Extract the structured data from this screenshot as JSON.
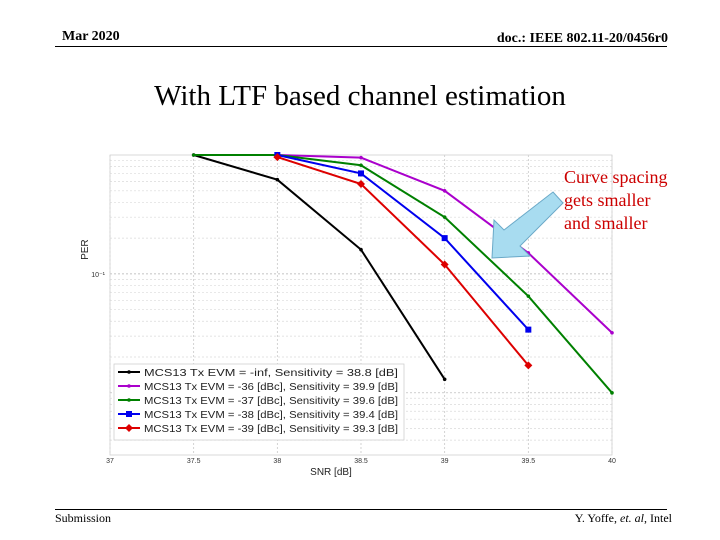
{
  "header": {
    "left": "Mar 2020",
    "right": "doc.: IEEE 802.11-20/0456r0"
  },
  "title": "With LTF based channel estimation",
  "annotation": {
    "lines": [
      "Curve spacing",
      "gets smaller",
      "and smaller"
    ],
    "color": "#cc0000"
  },
  "footer": {
    "left": "Submission",
    "right_name": "Y. Yoffe, ",
    "right_etal": "et. al",
    "right_org": ", Intel"
  },
  "chart_data": {
    "type": "line",
    "title": "",
    "xlabel": "SNR [dB]",
    "ylabel": "PER",
    "xlim": [
      37,
      40
    ],
    "ylim": [
      0.003,
      1
    ],
    "yscale": "log",
    "x_ticks": [
      "37",
      "37.5",
      "38",
      "38.5",
      "39",
      "39.5",
      "40"
    ],
    "y_tick_labels": [
      "10⁻¹"
    ],
    "legend": "bottom-left",
    "series": [
      {
        "name": "MCS13 Tx EVM = -inf, Sensitivity = 38.8 [dB]",
        "color": "#000000",
        "marker": "dot",
        "x": [
          37.5,
          38,
          38.5,
          39.0
        ],
        "y": [
          1.0,
          0.62,
          0.16,
          0.013
        ]
      },
      {
        "name": "MCS13 Tx EVM = -36 [dBc], Sensitivity = 39.9 [dB]",
        "color": "#aa00cc",
        "marker": "dot",
        "x": [
          37.5,
          38,
          38.5,
          39,
          39.5,
          40
        ],
        "y": [
          1.0,
          1.0,
          0.95,
          0.5,
          0.15,
          0.032
        ]
      },
      {
        "name": "MCS13 Tx EVM = -37 [dBc], Sensitivity = 39.6 [dB]",
        "color": "#008000",
        "marker": "dot",
        "x": [
          37.5,
          38,
          38.5,
          39,
          39.5,
          40
        ],
        "y": [
          1.0,
          1.0,
          0.82,
          0.3,
          0.065,
          0.01
        ]
      },
      {
        "name": "MCS13 Tx EVM = -38 [dBc], Sensitivity = 39.4 [dB]",
        "color": "#0000ee",
        "marker": "square",
        "x": [
          38,
          38.5,
          39,
          39.5
        ],
        "y": [
          1.0,
          0.7,
          0.2,
          0.034
        ]
      },
      {
        "name": "MCS13 Tx EVM = -39 [dBc], Sensitivity = 39.3 [dB]",
        "color": "#dd0000",
        "marker": "diamond",
        "x": [
          38,
          38.5,
          39,
          39.5
        ],
        "y": [
          0.96,
          0.57,
          0.12,
          0.017
        ]
      }
    ]
  }
}
